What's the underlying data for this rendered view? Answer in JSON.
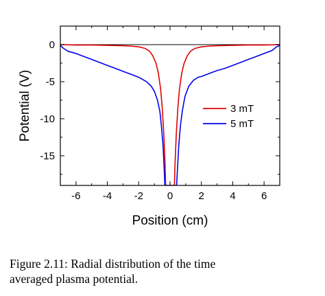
{
  "chart_data": {
    "type": "line",
    "xlabel": "Position (cm)",
    "ylabel": "Potential (V)",
    "xlim": [
      -7,
      7
    ],
    "ylim": [
      -19,
      2.5
    ],
    "x_ticks": [
      -6,
      -4,
      -2,
      0,
      2,
      4,
      6
    ],
    "y_ticks": [
      0,
      -5,
      -10,
      -15
    ],
    "x_tick_labels": [
      "-6",
      "-4",
      "-2",
      "0",
      "2",
      "4",
      "6"
    ],
    "y_tick_labels": [
      "0",
      "-5",
      "-10",
      "-15"
    ],
    "grid": false,
    "legend_position": "right",
    "baseline": 0,
    "series": [
      {
        "name": "3 mT",
        "color": "#e00000",
        "points": [
          [
            -7.0,
            0.0
          ],
          [
            -6.0,
            -0.05
          ],
          [
            -5.0,
            -0.05
          ],
          [
            -4.0,
            -0.1
          ],
          [
            -3.0,
            -0.15
          ],
          [
            -2.5,
            -0.2
          ],
          [
            -2.0,
            -0.3
          ],
          [
            -1.6,
            -0.5
          ],
          [
            -1.3,
            -0.9
          ],
          [
            -1.1,
            -1.5
          ],
          [
            -0.9,
            -2.5
          ],
          [
            -0.75,
            -3.8
          ],
          [
            -0.6,
            -6.0
          ],
          [
            -0.5,
            -8.5
          ],
          [
            -0.4,
            -12.0
          ],
          [
            -0.32,
            -16.0
          ],
          [
            -0.28,
            -19.0
          ],
          [
            0.28,
            -19.0
          ],
          [
            0.32,
            -16.0
          ],
          [
            0.4,
            -12.0
          ],
          [
            0.5,
            -8.5
          ],
          [
            0.6,
            -6.0
          ],
          [
            0.75,
            -3.8
          ],
          [
            0.9,
            -2.5
          ],
          [
            1.1,
            -1.5
          ],
          [
            1.3,
            -0.9
          ],
          [
            1.6,
            -0.5
          ],
          [
            2.0,
            -0.3
          ],
          [
            2.5,
            -0.2
          ],
          [
            3.0,
            -0.15
          ],
          [
            4.0,
            -0.1
          ],
          [
            5.0,
            -0.05
          ],
          [
            6.0,
            -0.05
          ],
          [
            7.0,
            0.0
          ]
        ]
      },
      {
        "name": "5 mT",
        "color": "#0000ee",
        "points": [
          [
            -7.0,
            -0.1
          ],
          [
            -6.8,
            -0.5
          ],
          [
            -6.5,
            -0.9
          ],
          [
            -6.0,
            -1.2
          ],
          [
            -5.5,
            -1.6
          ],
          [
            -5.0,
            -2.0
          ],
          [
            -4.5,
            -2.4
          ],
          [
            -4.0,
            -2.8
          ],
          [
            -3.5,
            -3.2
          ],
          [
            -3.0,
            -3.6
          ],
          [
            -2.5,
            -4.0
          ],
          [
            -2.0,
            -4.4
          ],
          [
            -1.5,
            -5.0
          ],
          [
            -1.2,
            -5.6
          ],
          [
            -1.0,
            -6.3
          ],
          [
            -0.8,
            -7.5
          ],
          [
            -0.65,
            -9.0
          ],
          [
            -0.55,
            -11.0
          ],
          [
            -0.45,
            -13.5
          ],
          [
            -0.38,
            -16.5
          ],
          [
            -0.33,
            -19.0
          ],
          [
            0.42,
            -19.0
          ],
          [
            0.48,
            -16.5
          ],
          [
            0.56,
            -13.5
          ],
          [
            0.66,
            -11.0
          ],
          [
            0.78,
            -9.0
          ],
          [
            0.95,
            -7.0
          ],
          [
            1.2,
            -5.6
          ],
          [
            1.5,
            -4.8
          ],
          [
            1.8,
            -4.4
          ],
          [
            2.0,
            -4.3
          ],
          [
            2.5,
            -3.9
          ],
          [
            3.0,
            -3.5
          ],
          [
            3.5,
            -3.2
          ],
          [
            4.0,
            -2.8
          ],
          [
            4.5,
            -2.4
          ],
          [
            5.0,
            -2.0
          ],
          [
            5.5,
            -1.6
          ],
          [
            6.0,
            -1.2
          ],
          [
            6.5,
            -0.8
          ],
          [
            6.8,
            -0.3
          ],
          [
            7.0,
            -0.1
          ]
        ]
      }
    ]
  },
  "caption": "Figure 2.11:  Radial distribution of the time\naveraged plasma potential."
}
